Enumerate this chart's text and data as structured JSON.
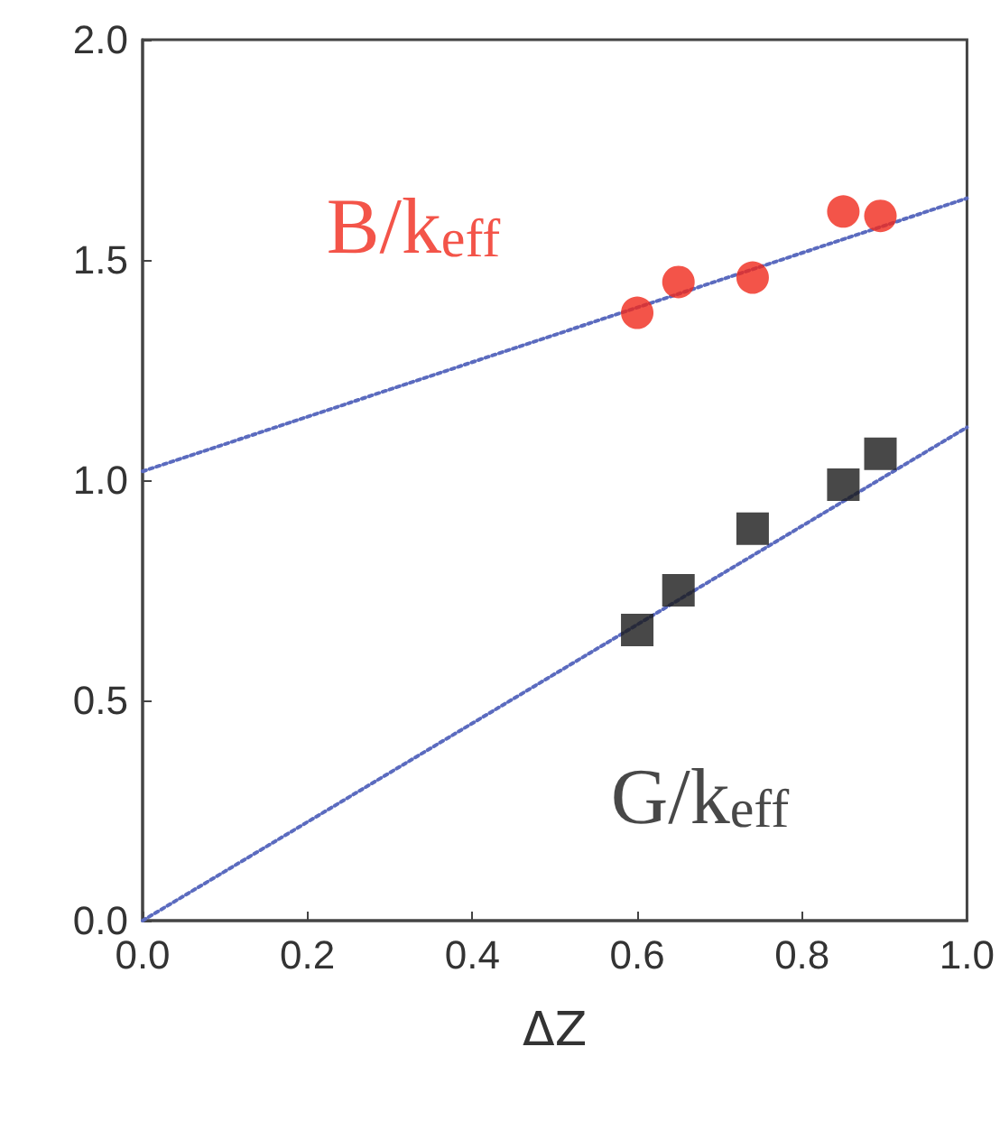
{
  "chart_data": {
    "type": "scatter",
    "xlabel": "ΔZ",
    "xlim": [
      0,
      1
    ],
    "ylim": [
      0,
      2
    ],
    "xticks": [
      {
        "value": 0,
        "label": "0.0"
      },
      {
        "value": 0.2,
        "label": "0.2"
      },
      {
        "value": 0.4,
        "label": "0.4"
      },
      {
        "value": 0.6,
        "label": "0.6"
      },
      {
        "value": 0.8,
        "label": "0.8"
      },
      {
        "value": 1,
        "label": "1.0"
      }
    ],
    "yticks": [
      {
        "value": 0,
        "label": "0.0"
      },
      {
        "value": 0.5,
        "label": "0.5"
      },
      {
        "value": 1,
        "label": "1.0"
      },
      {
        "value": 1.5,
        "label": "1.5"
      },
      {
        "value": 2,
        "label": "2.0"
      }
    ],
    "grid": false,
    "legend": false,
    "series": [
      {
        "name": "B/k$_{eff}$",
        "color": "#f0291c",
        "marker": "circle",
        "x": [
          0.6,
          0.65,
          0.74,
          0.85,
          0.895
        ],
        "values": [
          1.38,
          1.45,
          1.46,
          1.61,
          1.6
        ]
      },
      {
        "name": "G/k$_{eff}$",
        "color": "#1a1a1a",
        "marker": "square",
        "x": [
          0.6,
          0.65,
          0.74,
          0.85,
          0.895
        ],
        "values": [
          0.66,
          0.75,
          0.89,
          0.99,
          1.06
        ]
      },
      {
        "type": "line",
        "color": "#5b6bbf",
        "line_style": "dotted",
        "marker": "none",
        "x": [
          0,
          1
        ],
        "values": [
          1.02,
          1.64
        ]
      },
      {
        "type": "line",
        "color": "#5b6bbf",
        "line_style": "dotted",
        "marker": "none",
        "x": [
          0,
          1
        ],
        "values": [
          0,
          1.12
        ]
      }
    ]
  }
}
